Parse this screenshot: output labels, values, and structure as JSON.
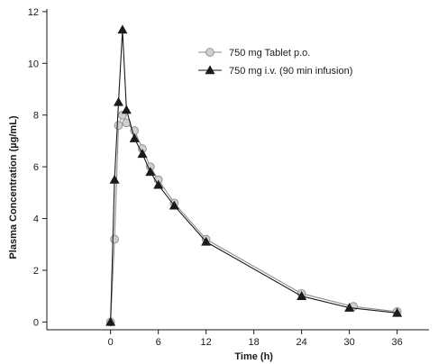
{
  "chart_data": {
    "type": "line",
    "xlabel": "Time (h)",
    "ylabel": "Plasma Concentration (µg/mL)",
    "xlim": [
      -8,
      40
    ],
    "ylim": [
      -0.3,
      12.1
    ],
    "xticks": [
      0,
      6,
      12,
      18,
      24,
      30,
      36
    ],
    "yticks": [
      0,
      2,
      4,
      6,
      8,
      10,
      12
    ],
    "grid": false,
    "legend_position": "top-right",
    "series": [
      {
        "name": "750 mg Tablet p.o.",
        "marker": "circle",
        "color": "#8c8c8c",
        "marker_fill": "#cfcfcf",
        "x": [
          0,
          0.5,
          1,
          1.5,
          2,
          3,
          4,
          5,
          6,
          8,
          12,
          24,
          30.5,
          36
        ],
        "y": [
          0,
          3.2,
          7.6,
          8.0,
          7.7,
          7.4,
          6.7,
          6.0,
          5.5,
          4.6,
          3.2,
          1.1,
          0.6,
          0.4
        ]
      },
      {
        "name": "750 mg i.v. (90 min infusion)",
        "marker": "triangle",
        "color": "#1a1a1a",
        "marker_fill": "#1a1a1a",
        "x": [
          0,
          0.5,
          1,
          1.5,
          2,
          3,
          4,
          5,
          6,
          8,
          12,
          24,
          30,
          36
        ],
        "y": [
          0,
          5.5,
          8.5,
          11.3,
          8.2,
          7.1,
          6.5,
          5.8,
          5.3,
          4.5,
          3.1,
          1.0,
          0.55,
          0.35
        ]
      }
    ]
  }
}
